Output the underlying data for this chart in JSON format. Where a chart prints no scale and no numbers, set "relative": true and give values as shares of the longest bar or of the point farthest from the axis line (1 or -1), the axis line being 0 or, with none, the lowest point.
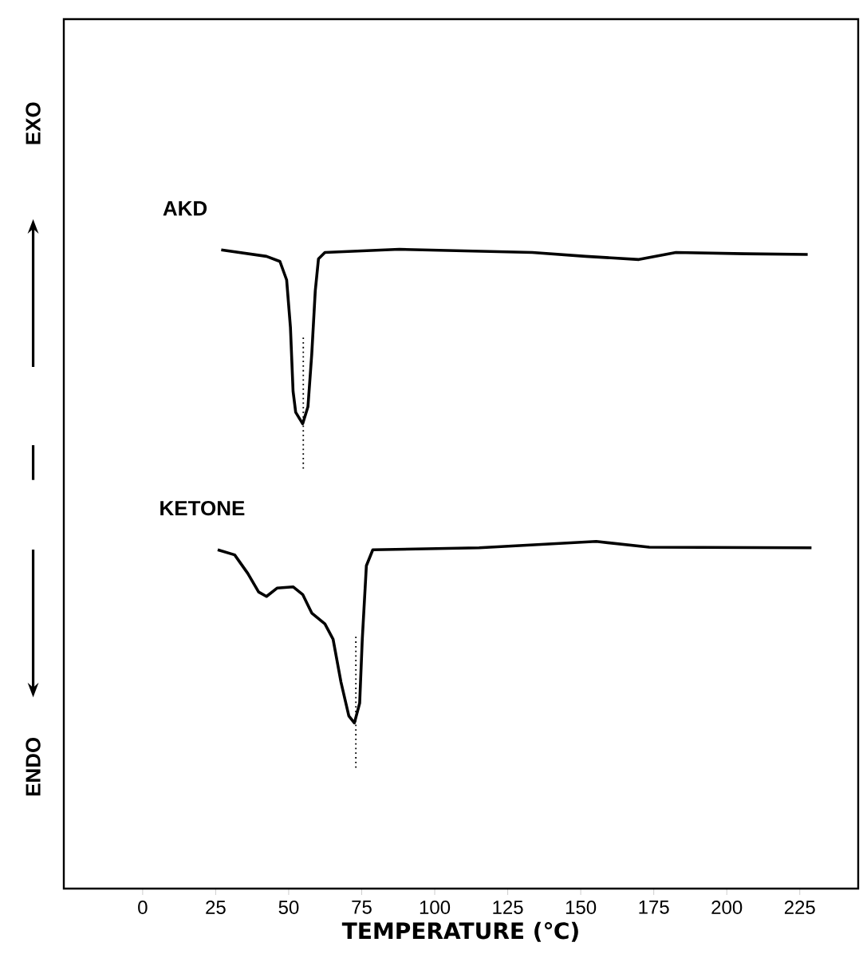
{
  "chart_data": {
    "type": "line",
    "relative": true,
    "xlabel": "TEMPERATURE (℃)",
    "xlim": [
      -27,
      245
    ],
    "xticks": [
      0,
      25,
      50,
      75,
      100,
      125,
      150,
      175,
      200,
      225
    ],
    "marker": "none",
    "line_style": "solid",
    "annotations": [
      "EXO",
      "ENDO"
    ],
    "series": [
      {
        "name": "AKD",
        "color": "#000000",
        "x": [
          26.9,
          42.4,
          47,
          49.3,
          50.6,
          51.5,
          52.4,
          54.8,
          56.6,
          57.9,
          59.1,
          60.2,
          62.4,
          87.9,
          133.4,
          151.7,
          169.9,
          182.6,
          206.3,
          227.7
        ],
        "values": [
          0.999,
          0.989,
          0.981,
          0.952,
          0.878,
          0.778,
          0.745,
          0.727,
          0.754,
          0.836,
          0.935,
          0.985,
          0.995,
          1.0,
          0.995,
          0.989,
          0.984,
          0.995,
          0.993,
          0.992
        ]
      },
      {
        "name": "KETONE",
        "color": "#000000",
        "x": [
          25.7,
          31.5,
          36,
          39.7,
          42.4,
          46,
          51.5,
          54.8,
          57.9,
          62.4,
          65.2,
          67.9,
          70.6,
          72.5,
          74.3,
          75.2,
          76.6,
          78.8,
          115.2,
          155.3,
          173.5,
          229
        ],
        "values": [
          0.53,
          0.522,
          0.493,
          0.464,
          0.457,
          0.47,
          0.472,
          0.46,
          0.431,
          0.414,
          0.39,
          0.323,
          0.27,
          0.259,
          0.29,
          0.39,
          0.505,
          0.53,
          0.533,
          0.543,
          0.534,
          0.533
        ]
      }
    ],
    "ref_lines": [
      {
        "axis": "x",
        "value": 55,
        "line_style": "dotted"
      },
      {
        "axis": "x",
        "value": 73,
        "line_style": "dotted"
      }
    ]
  }
}
